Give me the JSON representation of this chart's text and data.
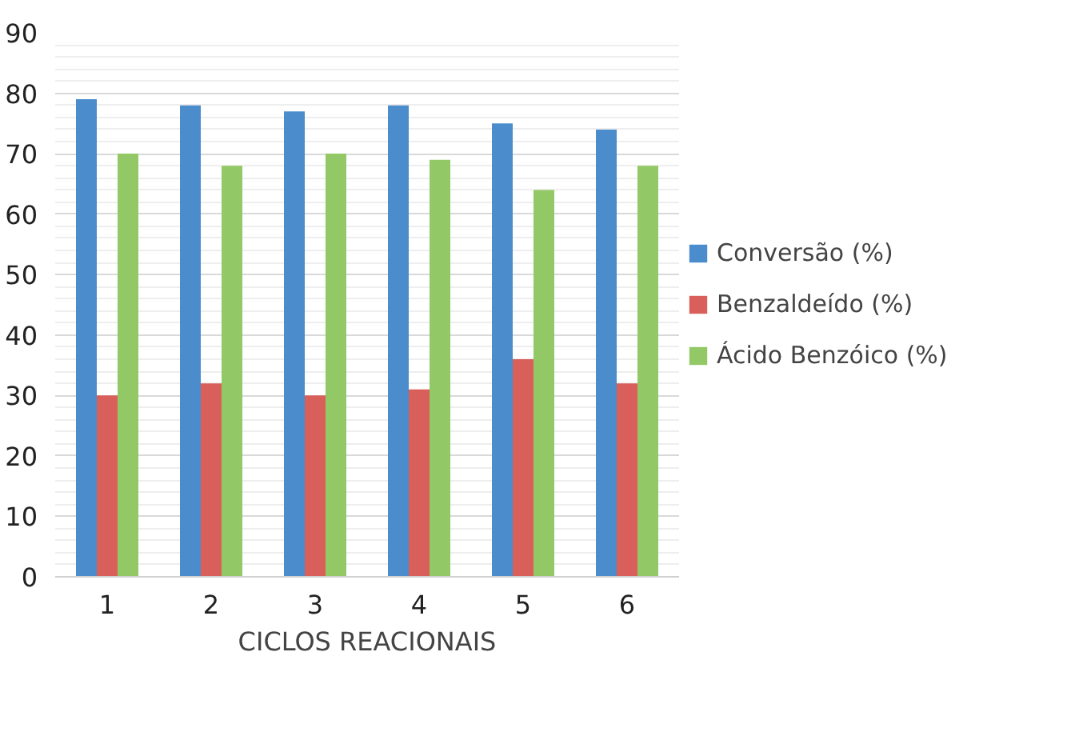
{
  "chart_data": {
    "type": "bar",
    "xlabel": "CICLOS REACIONAIS",
    "categories": [
      "1",
      "2",
      "3",
      "4",
      "5",
      "6"
    ],
    "series": [
      {
        "name": "Conversão (%)",
        "color": "#4a8ccc",
        "values": [
          79,
          78,
          77,
          78,
          75,
          74
        ]
      },
      {
        "name": "Benzaldeído (%)",
        "color": "#d9605a",
        "values": [
          30,
          32,
          30,
          31,
          36,
          32
        ]
      },
      {
        "name": "Ácido Benzóico (%)",
        "color": "#92c865",
        "values": [
          70,
          68,
          70,
          69,
          64,
          68
        ]
      }
    ],
    "ylim": [
      0,
      90
    ],
    "yticks": [
      0,
      10,
      20,
      30,
      40,
      50,
      60,
      70,
      80,
      90
    ],
    "grid": "y",
    "legend": "right"
  }
}
